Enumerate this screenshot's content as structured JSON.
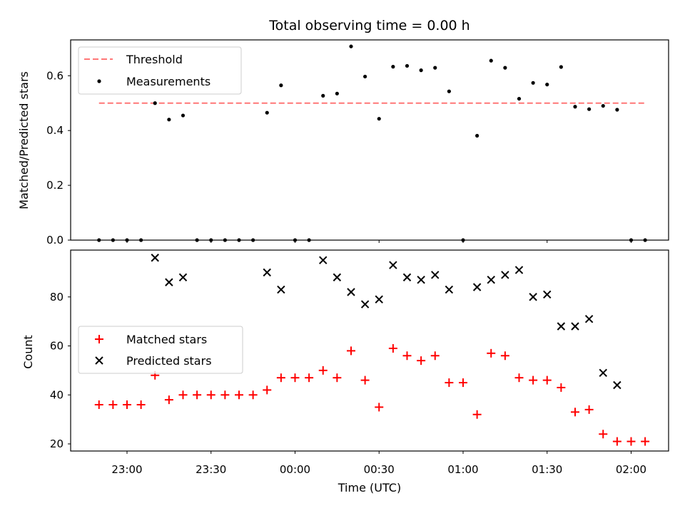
{
  "chart_data": [
    {
      "type": "scatter",
      "title": "Total observing time = 0.00 h",
      "xlabel": "",
      "ylabel": "Matched/Predicted stars",
      "ylim": [
        0,
        0.74
      ],
      "yticks": [
        "0.0",
        "0.2",
        "0.4",
        "0.6"
      ],
      "legend_position": "top-left",
      "series": [
        {
          "name": "Threshold",
          "style": "dashed-line",
          "color": "#ff7777",
          "x": [
            "22:50",
            "02:05"
          ],
          "values": [
            0.5,
            0.5
          ]
        },
        {
          "name": "Measurements",
          "style": "dot",
          "color": "#000000",
          "x": [
            "22:50",
            "22:55",
            "23:00",
            "23:05",
            "23:10",
            "23:15",
            "23:20",
            "23:25",
            "23:30",
            "23:35",
            "23:40",
            "23:45",
            "23:50",
            "23:55",
            "00:00",
            "00:05",
            "00:10",
            "00:15",
            "00:20",
            "00:25",
            "00:30",
            "00:35",
            "00:40",
            "00:45",
            "00:50",
            "00:55",
            "01:00",
            "01:05",
            "01:10",
            "01:15",
            "01:20",
            "01:25",
            "01:30",
            "01:35",
            "01:40",
            "01:45",
            "01:50",
            "01:55",
            "02:00",
            "02:05"
          ],
          "values": [
            0,
            0,
            0,
            0,
            0.5,
            0.44,
            0.455,
            0,
            0,
            0,
            0,
            0,
            0.465,
            0.565,
            0,
            0,
            0.527,
            0.535,
            0.707,
            0.597,
            0.443,
            0.633,
            0.636,
            0.62,
            0.629,
            0.543,
            0,
            0.381,
            0.655,
            0.629,
            0.516,
            0.574,
            0.568,
            0.632,
            0.487,
            0.478,
            0.49,
            0.476,
            0,
            0
          ]
        }
      ]
    },
    {
      "type": "scatter",
      "title": "",
      "xlabel": "Time (UTC)",
      "ylabel": "Count",
      "ylim": [
        17,
        98
      ],
      "yticks": [
        "20",
        "40",
        "60",
        "80"
      ],
      "xticks": [
        "23:00",
        "23:30",
        "00:00",
        "00:30",
        "01:00",
        "01:30",
        "02:00"
      ],
      "legend_position": "center-left",
      "series": [
        {
          "name": "Matched stars",
          "marker": "+",
          "color": "#ff0000",
          "x": [
            "22:50",
            "22:55",
            "23:00",
            "23:05",
            "23:10",
            "23:15",
            "23:20",
            "23:25",
            "23:30",
            "23:35",
            "23:40",
            "23:45",
            "23:50",
            "23:55",
            "00:00",
            "00:05",
            "00:10",
            "00:15",
            "00:20",
            "00:25",
            "00:30",
            "00:35",
            "00:40",
            "00:45",
            "00:50",
            "00:55",
            "01:00",
            "01:05",
            "01:10",
            "01:15",
            "01:20",
            "01:25",
            "01:30",
            "01:35",
            "01:40",
            "01:45",
            "01:50",
            "01:55",
            "02:00",
            "02:05"
          ],
          "values": [
            36,
            36,
            36,
            36,
            48,
            38,
            40,
            40,
            40,
            40,
            40,
            40,
            42,
            47,
            47,
            47,
            50,
            47,
            58,
            46,
            35,
            59,
            56,
            54,
            56,
            45,
            45,
            32,
            57,
            56,
            47,
            46,
            46,
            43,
            33,
            34,
            24,
            21,
            21,
            21
          ]
        },
        {
          "name": "Predicted stars",
          "marker": "x",
          "color": "#000000",
          "x": [
            "23:10",
            "23:15",
            "23:20",
            "23:50",
            "23:55",
            "00:10",
            "00:15",
            "00:20",
            "00:25",
            "00:30",
            "00:35",
            "00:40",
            "00:45",
            "00:50",
            "00:55",
            "01:05",
            "01:10",
            "01:15",
            "01:20",
            "01:25",
            "01:30",
            "01:35",
            "01:40",
            "01:45",
            "01:50",
            "01:55"
          ],
          "values": [
            96,
            86,
            88,
            90,
            83,
            95,
            88,
            82,
            77,
            79,
            93,
            88,
            87,
            89,
            83,
            84,
            87,
            89,
            91,
            80,
            81,
            68,
            68,
            71,
            49,
            44
          ]
        }
      ]
    }
  ]
}
